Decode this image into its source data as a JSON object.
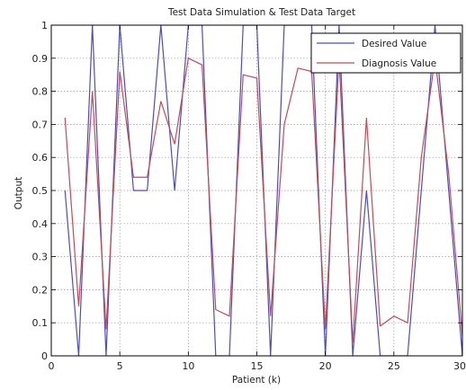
{
  "chart_data": {
    "type": "line",
    "title": "Test Data Simulation & Test Data Target",
    "xlabel": "Patient (k)",
    "ylabel": "Output",
    "xlim": [
      0,
      30
    ],
    "ylim": [
      0,
      1
    ],
    "x_ticks": [
      "0",
      "5",
      "10",
      "15",
      "20",
      "25",
      "30"
    ],
    "x_tick_values": [
      0,
      5,
      10,
      15,
      20,
      25,
      30
    ],
    "y_ticks": [
      "0",
      "0.1",
      "0.2",
      "0.3",
      "0.4",
      "0.5",
      "0.6",
      "0.7",
      "0.8",
      "0.9",
      "1"
    ],
    "y_tick_values": [
      0,
      0.1,
      0.2,
      0.3,
      0.4,
      0.5,
      0.6,
      0.7,
      0.8,
      0.9,
      1
    ],
    "grid": true,
    "legend_position": "top-right",
    "x": [
      1,
      2,
      3,
      4,
      5,
      6,
      7,
      8,
      9,
      10,
      11,
      12,
      13,
      14,
      15,
      16,
      17,
      18,
      19,
      20,
      21,
      22,
      23,
      24,
      25,
      26,
      27,
      28,
      29,
      30
    ],
    "series": [
      {
        "name": "Desired Value",
        "color": "#4d4dc0",
        "values": [
          0.5,
          0,
          1,
          0,
          1,
          0.5,
          0.5,
          1,
          0.5,
          1,
          1,
          0,
          0,
          1,
          1,
          0,
          1,
          1,
          1,
          0,
          1,
          0,
          0.5,
          0,
          0,
          0,
          0.5,
          1,
          0.5,
          0
        ]
      },
      {
        "name": "Diagnosis Value",
        "color": "#c04d5a",
        "values": [
          0.72,
          0.15,
          0.8,
          0.08,
          0.86,
          0.54,
          0.54,
          0.77,
          0.64,
          0.9,
          0.88,
          0.14,
          0.12,
          0.85,
          0.84,
          0.12,
          0.7,
          0.87,
          0.86,
          0.08,
          0.9,
          0.04,
          0.72,
          0.09,
          0.12,
          0.1,
          0.6,
          0.9,
          0.55,
          0.06
        ]
      }
    ]
  }
}
